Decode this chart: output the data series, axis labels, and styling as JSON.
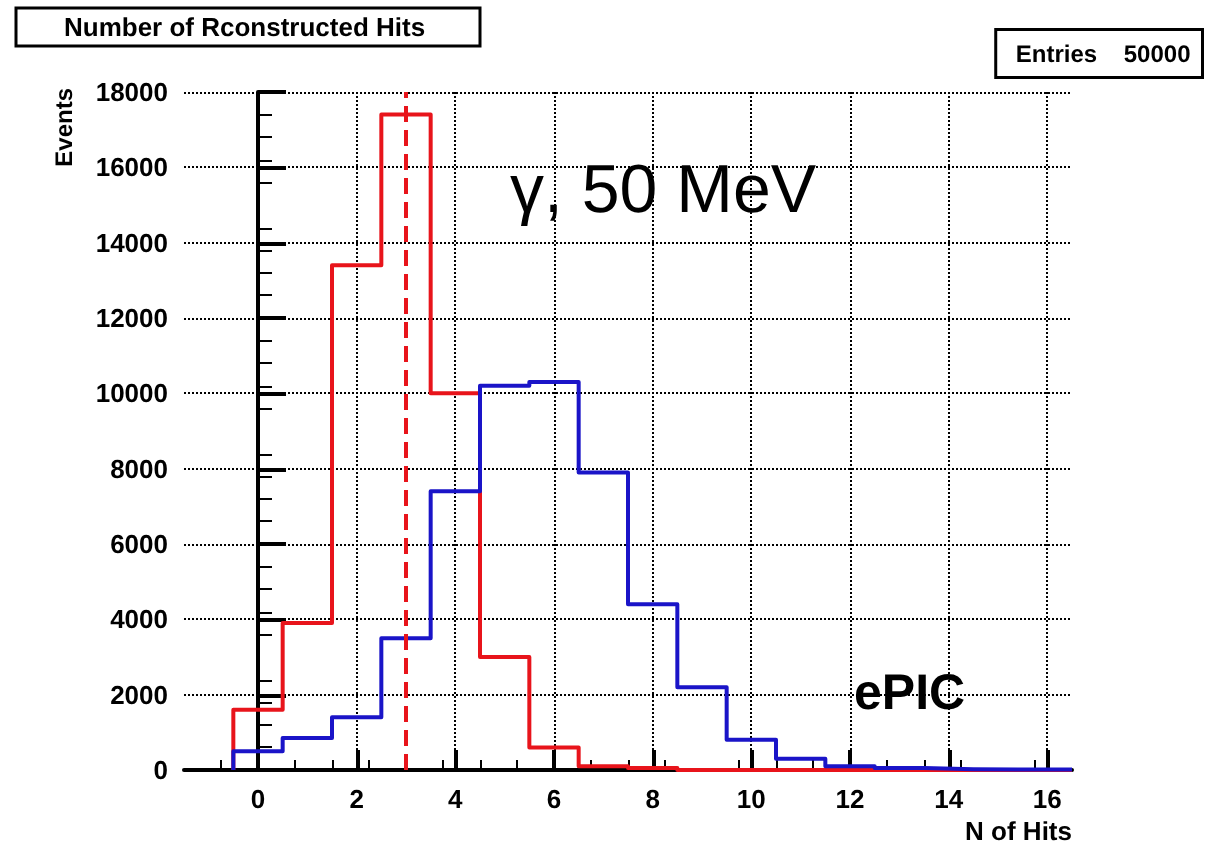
{
  "chart_data": {
    "type": "histogram",
    "title": "Number of Rconstructed Hits",
    "xlabel": "N of Hits",
    "ylabel": "Events",
    "bins": [
      -0.5,
      0.5,
      1.5,
      2.5,
      3.5,
      4.5,
      5.5,
      6.5,
      7.5,
      8.5,
      9.5,
      10.5,
      11.5,
      12.5,
      13.5,
      14.5,
      15.5,
      16.5
    ],
    "series": [
      {
        "color": "#e8141b",
        "values": [
          1600,
          3900,
          13400,
          17400,
          10000,
          3000,
          600,
          100,
          50,
          0,
          0,
          0,
          0,
          0,
          0,
          0,
          0
        ]
      },
      {
        "color": "#1a14c8",
        "values": [
          500,
          850,
          1400,
          3500,
          7400,
          10200,
          10300,
          7900,
          4400,
          2200,
          800,
          300,
          100,
          50,
          20,
          10,
          10
        ]
      }
    ],
    "xlim": [
      -1.5,
      16.5
    ],
    "xticks": [
      0,
      2,
      4,
      6,
      8,
      10,
      12,
      14,
      16
    ],
    "ylim": [
      0,
      18000
    ],
    "yticks": [
      0,
      2000,
      4000,
      6000,
      8000,
      10000,
      12000,
      14000,
      16000,
      18000
    ],
    "grid": true,
    "line_style": "solid",
    "ref_lines": [
      {
        "axis": "x",
        "value": 3,
        "color": "#e8141b",
        "line_style": "dashed"
      }
    ],
    "annotations": [
      "Entries    50000",
      "γ, 50 MeV",
      "ePIC"
    ]
  }
}
